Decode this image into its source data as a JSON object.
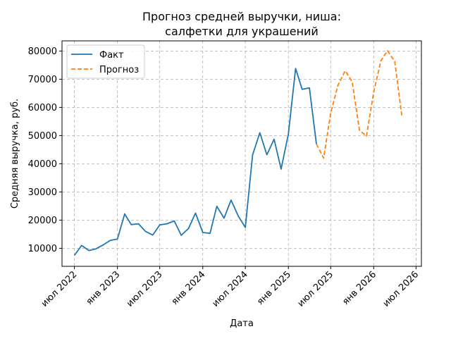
{
  "chart_data": {
    "type": "line",
    "title_line1": "Прогноз средней выручки, ниша:",
    "title_line2": "салфетки для украшений",
    "xlabel": "Дата",
    "ylabel": "Средняя выручка, руб.",
    "x_ticks": [
      {
        "date": "2022-07-01",
        "label": "июл 2022"
      },
      {
        "date": "2023-01-01",
        "label": "янв 2023"
      },
      {
        "date": "2023-07-01",
        "label": "июл 2023"
      },
      {
        "date": "2024-01-01",
        "label": "янв 2024"
      },
      {
        "date": "2024-07-01",
        "label": "июл 2024"
      },
      {
        "date": "2025-01-01",
        "label": "янв 2025"
      },
      {
        "date": "2025-07-01",
        "label": "июл 2025"
      },
      {
        "date": "2026-01-01",
        "label": "янв 2026"
      },
      {
        "date": "2026-07-01",
        "label": "июл 2026"
      }
    ],
    "y_ticks": [
      10000,
      20000,
      30000,
      40000,
      50000,
      60000,
      70000,
      80000
    ],
    "y_tick_labels": [
      "10000",
      "20000",
      "30000",
      "40000",
      "50000",
      "60000",
      "70000",
      "80000"
    ],
    "xlim": [
      "2022-05-09",
      "2026-07-24"
    ],
    "ylim": [
      3600,
      83600
    ],
    "grid": true,
    "legend_position": "top-left",
    "series": [
      {
        "name": "Факт",
        "color": "#1f77b4",
        "style": "solid",
        "points": [
          [
            "2022-07-01",
            7500
          ],
          [
            "2022-08-01",
            11000
          ],
          [
            "2022-09-01",
            9200
          ],
          [
            "2022-10-01",
            9800
          ],
          [
            "2022-11-01",
            11200
          ],
          [
            "2022-12-01",
            12800
          ],
          [
            "2023-01-01",
            13300
          ],
          [
            "2023-02-01",
            22200
          ],
          [
            "2023-03-01",
            18400
          ],
          [
            "2023-04-01",
            18700
          ],
          [
            "2023-05-01",
            16000
          ],
          [
            "2023-06-01",
            14700
          ],
          [
            "2023-07-01",
            18300
          ],
          [
            "2023-08-01",
            18700
          ],
          [
            "2023-09-01",
            19700
          ],
          [
            "2023-10-01",
            14600
          ],
          [
            "2023-11-01",
            17000
          ],
          [
            "2023-12-01",
            22500
          ],
          [
            "2024-01-01",
            15600
          ],
          [
            "2024-02-01",
            15300
          ],
          [
            "2024-03-01",
            24900
          ],
          [
            "2024-04-01",
            20700
          ],
          [
            "2024-05-01",
            27100
          ],
          [
            "2024-06-01",
            21400
          ],
          [
            "2024-07-01",
            17400
          ],
          [
            "2024-08-01",
            43100
          ],
          [
            "2024-09-01",
            51000
          ],
          [
            "2024-10-01",
            43200
          ],
          [
            "2024-11-01",
            48700
          ],
          [
            "2024-12-01",
            38100
          ],
          [
            "2025-01-01",
            50500
          ],
          [
            "2025-02-01",
            73800
          ],
          [
            "2025-03-01",
            66400
          ],
          [
            "2025-04-01",
            66900
          ],
          [
            "2025-05-01",
            47000
          ]
        ]
      },
      {
        "name": "Прогноз",
        "color": "#ff7f0e",
        "style": "dashed",
        "points": [
          [
            "2025-05-01",
            47000
          ],
          [
            "2025-06-01",
            42000
          ],
          [
            "2025-07-01",
            58000
          ],
          [
            "2025-08-01",
            67800
          ],
          [
            "2025-09-01",
            73000
          ],
          [
            "2025-10-01",
            69100
          ],
          [
            "2025-11-01",
            51900
          ],
          [
            "2025-12-01",
            49800
          ],
          [
            "2026-01-01",
            65400
          ],
          [
            "2026-02-01",
            76600
          ],
          [
            "2026-03-01",
            80100
          ],
          [
            "2026-04-01",
            76300
          ],
          [
            "2026-05-01",
            57200
          ]
        ]
      }
    ]
  }
}
